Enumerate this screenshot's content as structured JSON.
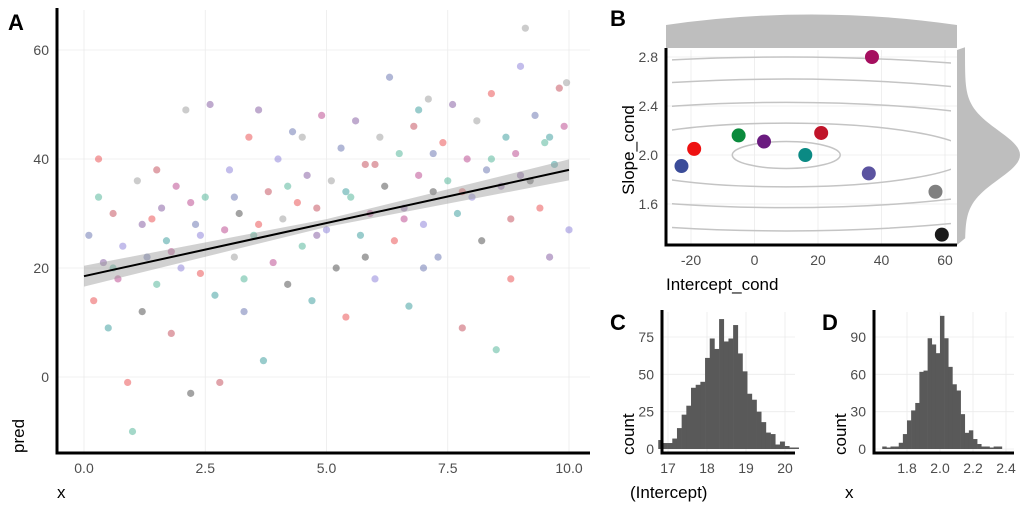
{
  "chart_data": [
    {
      "panel": "A",
      "type": "scatter",
      "xlabel": "x",
      "ylabel": "pred",
      "xlim": [
        -0.5,
        10.5
      ],
      "ylim": [
        -12,
        67
      ],
      "xticks": [
        "0.0",
        "2.5",
        "5.0",
        "7.5",
        "10.0"
      ],
      "xtick_values": [
        0,
        2.5,
        5,
        7.5,
        10
      ],
      "yticks": [
        "0",
        "20",
        "40",
        "60"
      ],
      "ytick_values": [
        0,
        20,
        40,
        60
      ],
      "point_colors": [
        "#3b4c99",
        "#e41a1c",
        "#1b9e77",
        "#5e2a84",
        "#008080",
        "#b2182b",
        "#a50f6b",
        "#6a5acd",
        "#808080",
        "#1a1a1a"
      ],
      "point_alpha": 0.4,
      "points": [
        [
          0.1,
          26,
          0
        ],
        [
          0.2,
          14,
          1
        ],
        [
          0.3,
          33,
          2
        ],
        [
          0.4,
          21,
          3
        ],
        [
          0.5,
          9,
          4
        ],
        [
          0.6,
          30,
          5
        ],
        [
          0.7,
          18,
          6
        ],
        [
          0.8,
          24,
          7
        ],
        [
          0.9,
          -1,
          1
        ],
        [
          1.0,
          -10,
          2
        ],
        [
          1.1,
          36,
          8
        ],
        [
          1.2,
          12,
          9
        ],
        [
          1.3,
          22,
          0
        ],
        [
          1.4,
          29,
          1
        ],
        [
          1.5,
          17,
          2
        ],
        [
          1.6,
          31,
          3
        ],
        [
          1.7,
          25,
          4
        ],
        [
          1.8,
          8,
          5
        ],
        [
          1.9,
          35,
          6
        ],
        [
          2.0,
          20,
          7
        ],
        [
          2.1,
          49,
          8
        ],
        [
          2.2,
          -3,
          9
        ],
        [
          2.3,
          28,
          0
        ],
        [
          2.4,
          19,
          1
        ],
        [
          2.5,
          33,
          2
        ],
        [
          2.6,
          50,
          3
        ],
        [
          2.7,
          15,
          4
        ],
        [
          2.8,
          -1,
          5
        ],
        [
          2.9,
          27,
          6
        ],
        [
          3.0,
          38,
          7
        ],
        [
          3.1,
          22,
          8
        ],
        [
          3.2,
          30,
          9
        ],
        [
          3.3,
          12,
          0
        ],
        [
          3.4,
          44,
          1
        ],
        [
          3.5,
          26,
          2
        ],
        [
          3.6,
          49,
          3
        ],
        [
          3.7,
          3,
          4
        ],
        [
          3.8,
          34,
          5
        ],
        [
          3.9,
          21,
          6
        ],
        [
          4.0,
          40,
          7
        ],
        [
          4.1,
          29,
          8
        ],
        [
          4.2,
          17,
          9
        ],
        [
          4.3,
          45,
          0
        ],
        [
          4.4,
          32,
          1
        ],
        [
          4.5,
          24,
          2
        ],
        [
          4.6,
          37,
          3
        ],
        [
          4.7,
          14,
          4
        ],
        [
          4.8,
          31,
          5
        ],
        [
          4.9,
          48,
          6
        ],
        [
          5.0,
          27,
          7
        ],
        [
          5.1,
          36,
          8
        ],
        [
          5.2,
          20,
          9
        ],
        [
          5.3,
          42,
          0
        ],
        [
          5.4,
          11,
          1
        ],
        [
          5.5,
          33,
          2
        ],
        [
          5.6,
          47,
          3
        ],
        [
          5.7,
          26,
          4
        ],
        [
          5.8,
          39,
          5
        ],
        [
          5.9,
          30,
          6
        ],
        [
          6.0,
          18,
          7
        ],
        [
          6.1,
          44,
          8
        ],
        [
          6.2,
          35,
          9
        ],
        [
          6.3,
          55,
          0
        ],
        [
          6.4,
          25,
          1
        ],
        [
          6.5,
          41,
          2
        ],
        [
          6.6,
          31,
          3
        ],
        [
          6.7,
          13,
          4
        ],
        [
          6.8,
          46,
          5
        ],
        [
          6.9,
          37,
          6
        ],
        [
          7.0,
          28,
          7
        ],
        [
          7.1,
          51,
          8
        ],
        [
          7.2,
          34,
          9
        ],
        [
          7.3,
          22,
          0
        ],
        [
          7.4,
          43,
          1
        ],
        [
          7.5,
          36,
          2
        ],
        [
          7.6,
          50,
          3
        ],
        [
          7.7,
          30,
          4
        ],
        [
          7.8,
          9,
          5
        ],
        [
          7.9,
          40,
          6
        ],
        [
          8.0,
          33,
          7
        ],
        [
          8.1,
          47,
          8
        ],
        [
          8.2,
          25,
          9
        ],
        [
          8.3,
          38,
          0
        ],
        [
          8.4,
          52,
          1
        ],
        [
          8.5,
          5,
          2
        ],
        [
          8.6,
          35,
          3
        ],
        [
          8.7,
          44,
          4
        ],
        [
          8.8,
          29,
          5
        ],
        [
          8.9,
          41,
          6
        ],
        [
          9.0,
          57,
          7
        ],
        [
          9.1,
          64,
          8
        ],
        [
          9.2,
          36,
          9
        ],
        [
          9.3,
          48,
          0
        ],
        [
          9.4,
          31,
          1
        ],
        [
          9.5,
          43,
          2
        ],
        [
          9.6,
          22,
          3
        ],
        [
          9.7,
          39,
          4
        ],
        [
          9.8,
          53,
          5
        ],
        [
          9.9,
          46,
          6
        ],
        [
          10.0,
          27,
          7
        ],
        [
          9.95,
          54,
          8
        ],
        [
          0.3,
          40,
          1
        ],
        [
          0.6,
          20,
          2
        ],
        [
          1.2,
          28,
          3
        ],
        [
          1.8,
          23,
          6
        ],
        [
          2.4,
          26,
          7
        ],
        [
          3.1,
          33,
          0
        ],
        [
          3.6,
          28,
          1
        ],
        [
          4.2,
          35,
          2
        ],
        [
          4.8,
          26,
          3
        ],
        [
          5.4,
          34,
          4
        ],
        [
          6.0,
          39,
          5
        ],
        [
          6.6,
          29,
          6
        ],
        [
          7.2,
          41,
          0
        ],
        [
          7.8,
          34,
          1
        ],
        [
          8.4,
          40,
          2
        ],
        [
          9.0,
          37,
          3
        ],
        [
          9.6,
          44,
          4
        ],
        [
          1.5,
          38,
          5
        ],
        [
          2.2,
          32,
          6
        ],
        [
          4.5,
          44,
          8
        ],
        [
          5.8,
          22,
          9
        ],
        [
          7.0,
          20,
          0
        ],
        [
          8.8,
          18,
          1
        ],
        [
          3.3,
          18,
          2
        ],
        [
          6.9,
          49,
          4
        ]
      ],
      "regression": {
        "intercept": 18.5,
        "slope": 1.95,
        "ci_halfwidth": 1.2,
        "color": "#000000"
      }
    },
    {
      "panel": "B",
      "type": "scatter",
      "xlabel": "Intercept_cond",
      "ylabel": "Slope_cond",
      "xlim": [
        -27,
        63
      ],
      "ylim": [
        1.3,
        2.88
      ],
      "xticks": [
        "-20",
        "0",
        "20",
        "40",
        "60"
      ],
      "xtick_values": [
        -20,
        0,
        20,
        40,
        60
      ],
      "yticks": [
        "1.6",
        "2.0",
        "2.4",
        "2.8"
      ],
      "ytick_values": [
        1.6,
        2.0,
        2.4,
        2.8
      ],
      "points": [
        {
          "x": -23,
          "y": 1.91,
          "color": "#3b4c99"
        },
        {
          "x": -19,
          "y": 2.05,
          "color": "#ee1111"
        },
        {
          "x": -5,
          "y": 2.16,
          "color": "#0a8a3c"
        },
        {
          "x": 3,
          "y": 2.11,
          "color": "#6a1b7f"
        },
        {
          "x": 16,
          "y": 2.0,
          "color": "#0b8a84"
        },
        {
          "x": 21,
          "y": 2.18,
          "color": "#c0142a"
        },
        {
          "x": 37,
          "y": 2.8,
          "color": "#a50f5f"
        },
        {
          "x": 36,
          "y": 1.85,
          "color": "#5b53a0"
        },
        {
          "x": 57,
          "y": 1.7,
          "color": "#808080"
        },
        {
          "x": 59,
          "y": 1.35,
          "color": "#1a1a1a"
        }
      ],
      "contour_center": [
        10,
        2.0
      ],
      "contour_radii": [
        [
          17,
          0.11
        ],
        [
          58,
          0.26
        ],
        [
          95,
          0.43
        ],
        [
          120,
          0.62
        ],
        [
          150,
          0.8
        ]
      ],
      "marginal_color": "#bebebe"
    },
    {
      "panel": "C",
      "type": "bar",
      "xlabel": "(Intercept)",
      "ylabel": "count",
      "xlim": [
        16.6,
        20.5
      ],
      "ylim": [
        0,
        92
      ],
      "xticks": [
        "17",
        "18",
        "19",
        "20"
      ],
      "xtick_values": [
        17,
        18,
        19,
        20
      ],
      "yticks": [
        "0",
        "25",
        "50",
        "75"
      ],
      "ytick_values": [
        0,
        25,
        50,
        75
      ],
      "bin_start": 16.75,
      "bin_width": 0.12,
      "values": [
        6,
        4,
        4,
        7,
        14,
        23,
        29,
        41,
        43,
        45,
        61,
        74,
        67,
        87,
        72,
        74,
        83,
        64,
        52,
        37,
        33,
        25,
        18,
        11,
        10,
        3,
        5,
        2,
        0,
        1
      ]
    },
    {
      "panel": "D",
      "type": "bar",
      "xlabel": "x",
      "ylabel": "count",
      "xlim": [
        1.61,
        2.42
      ],
      "ylim": [
        0,
        112
      ],
      "xticks": [
        "1.8",
        "2.0",
        "2.2",
        "2.4"
      ],
      "xtick_values": [
        1.8,
        2.0,
        2.2,
        2.4
      ],
      "yticks": [
        "0",
        "30",
        "60",
        "90"
      ],
      "ytick_values": [
        0,
        30,
        60,
        90
      ],
      "bin_start": 1.65,
      "bin_width": 0.025,
      "values": [
        2,
        0,
        2,
        2,
        5,
        12,
        23,
        31,
        37,
        62,
        63,
        89,
        84,
        77,
        107,
        89,
        66,
        52,
        47,
        28,
        13,
        15,
        8,
        4,
        2,
        2,
        0,
        2,
        2
      ]
    }
  ]
}
